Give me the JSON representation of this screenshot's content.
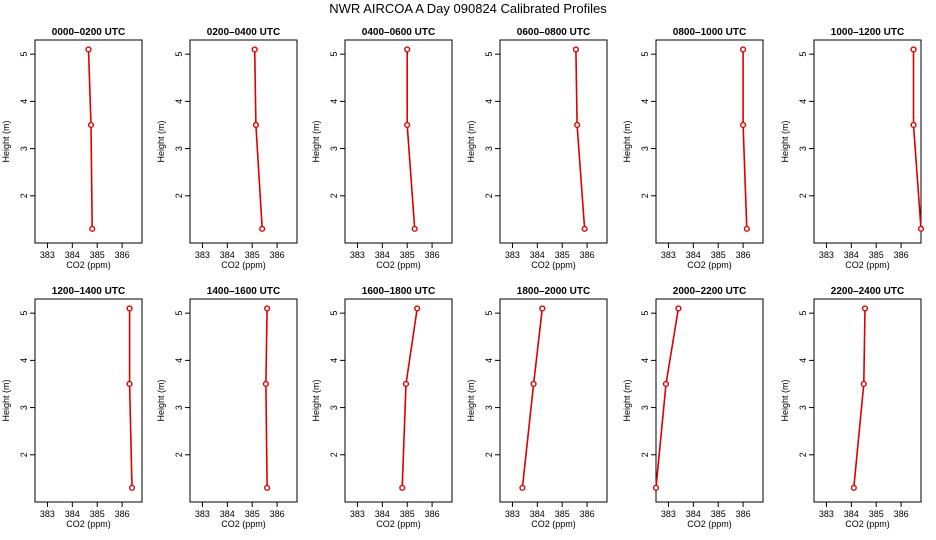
{
  "title": "NWR AIRCOA A  Day 090824  Calibrated Profiles",
  "chart_data": {
    "type": "line",
    "xlabel": "CO2 (ppm)",
    "ylabel": "Height (m)",
    "xlim": [
      382.5,
      386.8
    ],
    "ylim": [
      1.0,
      5.3
    ],
    "xticks": [
      383,
      384,
      385,
      386
    ],
    "yticks": [
      2,
      3,
      4,
      5
    ],
    "heights": [
      1.3,
      3.5,
      5.1
    ],
    "series_color": "#dd0000",
    "panels": [
      {
        "title": "0000–0200 UTC",
        "co2": [
          384.8,
          384.75,
          384.65
        ]
      },
      {
        "title": "0200–0400 UTC",
        "co2": [
          385.4,
          385.15,
          385.1
        ]
      },
      {
        "title": "0400–0600 UTC",
        "co2": [
          385.3,
          385.0,
          385.0
        ]
      },
      {
        "title": "0600–0800 UTC",
        "co2": [
          385.9,
          385.6,
          385.55
        ]
      },
      {
        "title": "0800–1000 UTC",
        "co2": [
          386.15,
          386.0,
          386.0
        ]
      },
      {
        "title": "1000–1200 UTC",
        "co2": [
          386.8,
          386.5,
          386.5
        ]
      },
      {
        "title": "1200–1400 UTC",
        "co2": [
          386.4,
          386.3,
          386.3
        ]
      },
      {
        "title": "1400–1600 UTC",
        "co2": [
          385.6,
          385.55,
          385.6
        ]
      },
      {
        "title": "1600–1800 UTC",
        "co2": [
          384.8,
          384.95,
          385.4
        ]
      },
      {
        "title": "1800–2000 UTC",
        "co2": [
          383.4,
          383.85,
          384.2
        ]
      },
      {
        "title": "2000–2200 UTC",
        "co2": [
          382.5,
          382.9,
          383.4
        ]
      },
      {
        "title": "2200–2400 UTC",
        "co2": [
          384.1,
          384.5,
          384.55
        ]
      }
    ]
  }
}
